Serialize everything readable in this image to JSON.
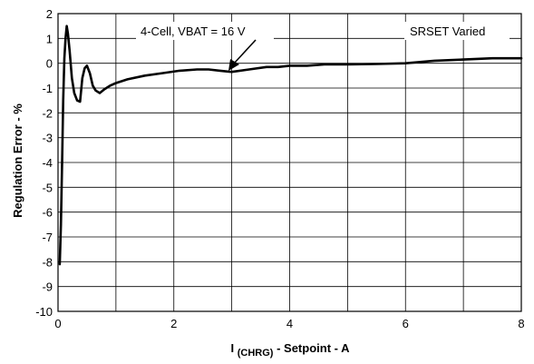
{
  "chart_data": {
    "type": "line",
    "xlabel_main": "I",
    "xlabel_sub": "(CHRG)",
    "xlabel_rest": " - Setpoint - A",
    "ylabel": "Regulation Error - %",
    "xlim": [
      0,
      8
    ],
    "ylim": [
      -10,
      2
    ],
    "x_ticks": [
      0,
      2,
      4,
      6,
      8
    ],
    "y_ticks": [
      2,
      1,
      0,
      -1,
      -2,
      -3,
      -4,
      -5,
      -6,
      -7,
      -8,
      -9,
      -10
    ],
    "grid": true,
    "annotations": {
      "series_label": "4-Cell, VBAT = 16 V",
      "condition_label": "SRSET Varied"
    },
    "series": [
      {
        "x": [
          0.03,
          0.05,
          0.07,
          0.09,
          0.11,
          0.13,
          0.15,
          0.17,
          0.2,
          0.24,
          0.28,
          0.33,
          0.38,
          0.42,
          0.46,
          0.5,
          0.55,
          0.6,
          0.65,
          0.72,
          0.8,
          0.9,
          1.0,
          1.2,
          1.5,
          1.8,
          2.1,
          2.4,
          2.6,
          2.8,
          3.0,
          3.3,
          3.6,
          3.8,
          4.0,
          4.3,
          4.6,
          5.0,
          5.5,
          6.0,
          6.5,
          7.0,
          7.5,
          8.0
        ],
        "y": [
          -8.1,
          -6.5,
          -4.0,
          -1.5,
          0.2,
          1.0,
          1.5,
          1.2,
          0.5,
          -0.6,
          -1.2,
          -1.5,
          -1.55,
          -0.6,
          -0.2,
          -0.1,
          -0.4,
          -0.9,
          -1.1,
          -1.2,
          -1.05,
          -0.9,
          -0.8,
          -0.65,
          -0.5,
          -0.4,
          -0.3,
          -0.25,
          -0.25,
          -0.3,
          -0.35,
          -0.25,
          -0.15,
          -0.15,
          -0.1,
          -0.1,
          -0.05,
          -0.05,
          -0.03,
          0.0,
          0.1,
          0.15,
          0.2,
          0.2
        ]
      }
    ]
  }
}
